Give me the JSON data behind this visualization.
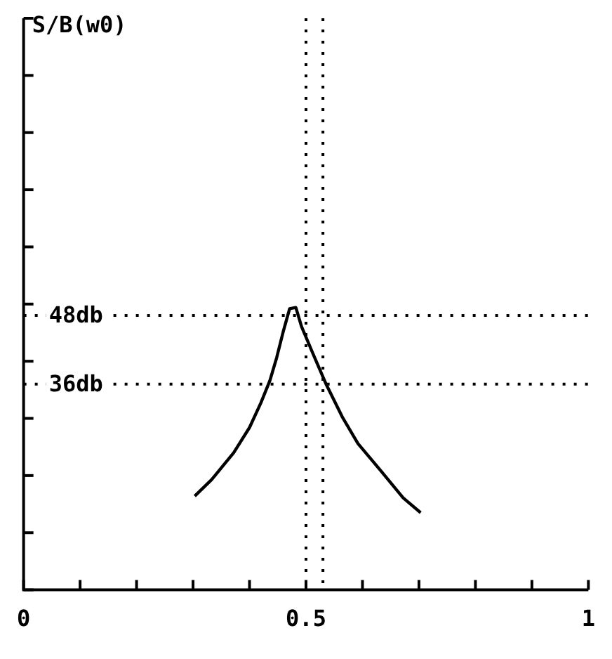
{
  "chart_data": {
    "type": "line",
    "ylabel": "S/B(w0)",
    "xlim": [
      0,
      1
    ],
    "xticks": [
      0,
      {
        "value": 0.1,
        "label": null
      },
      {
        "value": 0.2,
        "label": null
      },
      {
        "value": 0.3,
        "label": null
      },
      {
        "value": 0.4,
        "label": null
      },
      0.5,
      {
        "value": 0.6,
        "label": null
      },
      {
        "value": 0.7,
        "label": null
      },
      {
        "value": 0.8,
        "label": null
      },
      {
        "value": 0.9,
        "label": null
      },
      1
    ],
    "ylim": [
      0,
      100
    ],
    "yticks": [
      {
        "value": 0,
        "label": null
      },
      {
        "value": 10,
        "label": null
      },
      {
        "value": 20,
        "label": null
      },
      {
        "value": 30,
        "label": null
      },
      {
        "value": 40,
        "label": null
      },
      {
        "value": 50,
        "label": null
      },
      {
        "value": 60,
        "label": null
      },
      {
        "value": 70,
        "label": null
      },
      {
        "value": 80,
        "label": null
      },
      {
        "value": 90,
        "label": null
      },
      {
        "value": 100,
        "label": null
      }
    ],
    "tick_labels": "x",
    "grid": false,
    "legend": false,
    "marker": "none",
    "line_style": "solid",
    "series": [
      {
        "color": "#000000",
        "x": [
          0.303,
          0.333,
          0.372,
          0.4,
          0.42,
          0.436,
          0.448,
          0.46,
          0.471,
          0.482,
          0.492,
          0.512,
          0.536,
          0.564,
          0.592,
          0.632,
          0.672,
          0.703
        ],
        "values": [
          16.4,
          19.3,
          24,
          28.4,
          32.7,
          36.6,
          40.6,
          45.3,
          49.2,
          49.4,
          46.1,
          41.4,
          35.9,
          30.3,
          25.6,
          20.9,
          16.1,
          13.5
        ]
      }
    ],
    "ref_lines": [
      {
        "axis": "y",
        "value": 48,
        "label": "48db",
        "line_style": "dotted"
      },
      {
        "axis": "y",
        "value": 36,
        "label": "36db",
        "line_style": "dotted"
      },
      {
        "axis": "x",
        "value": 0.5,
        "line_style": "dotted"
      },
      {
        "axis": "x",
        "value": 0.53,
        "line_style": "dotted"
      }
    ]
  }
}
